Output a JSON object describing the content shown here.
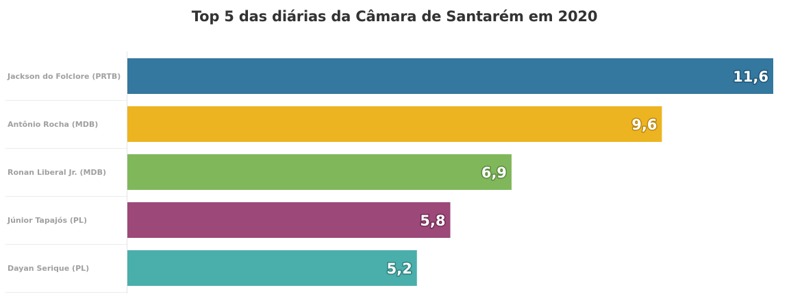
{
  "chart_data": {
    "type": "bar",
    "orientation": "horizontal",
    "title": "Top 5 das diárias da Câmara de Santarém em 2020",
    "xlabel": "",
    "ylabel": "",
    "xlim": [
      0,
      11.6
    ],
    "grid": false,
    "legend": "none",
    "categories": [
      "Jackson do Folclore (PRTB)",
      "Antônio Rocha (MDB)",
      "Ronan Liberal Jr. (MDB)",
      "Júnior Tapajós (PL)",
      "Dayan Serique (PL)"
    ],
    "values": [
      11.6,
      9.6,
      6.9,
      5.8,
      5.2
    ],
    "value_labels": [
      "11,6",
      "9,6",
      "6,9",
      "5,8",
      "5,2"
    ],
    "colors": [
      "#34779f",
      "#edb421",
      "#80b75b",
      "#9c4879",
      "#4aaeab"
    ],
    "label_outline_colors": [
      "#1f5676",
      "#b9860e",
      "#57893a",
      "#6e2a52",
      "#2d807d"
    ]
  }
}
